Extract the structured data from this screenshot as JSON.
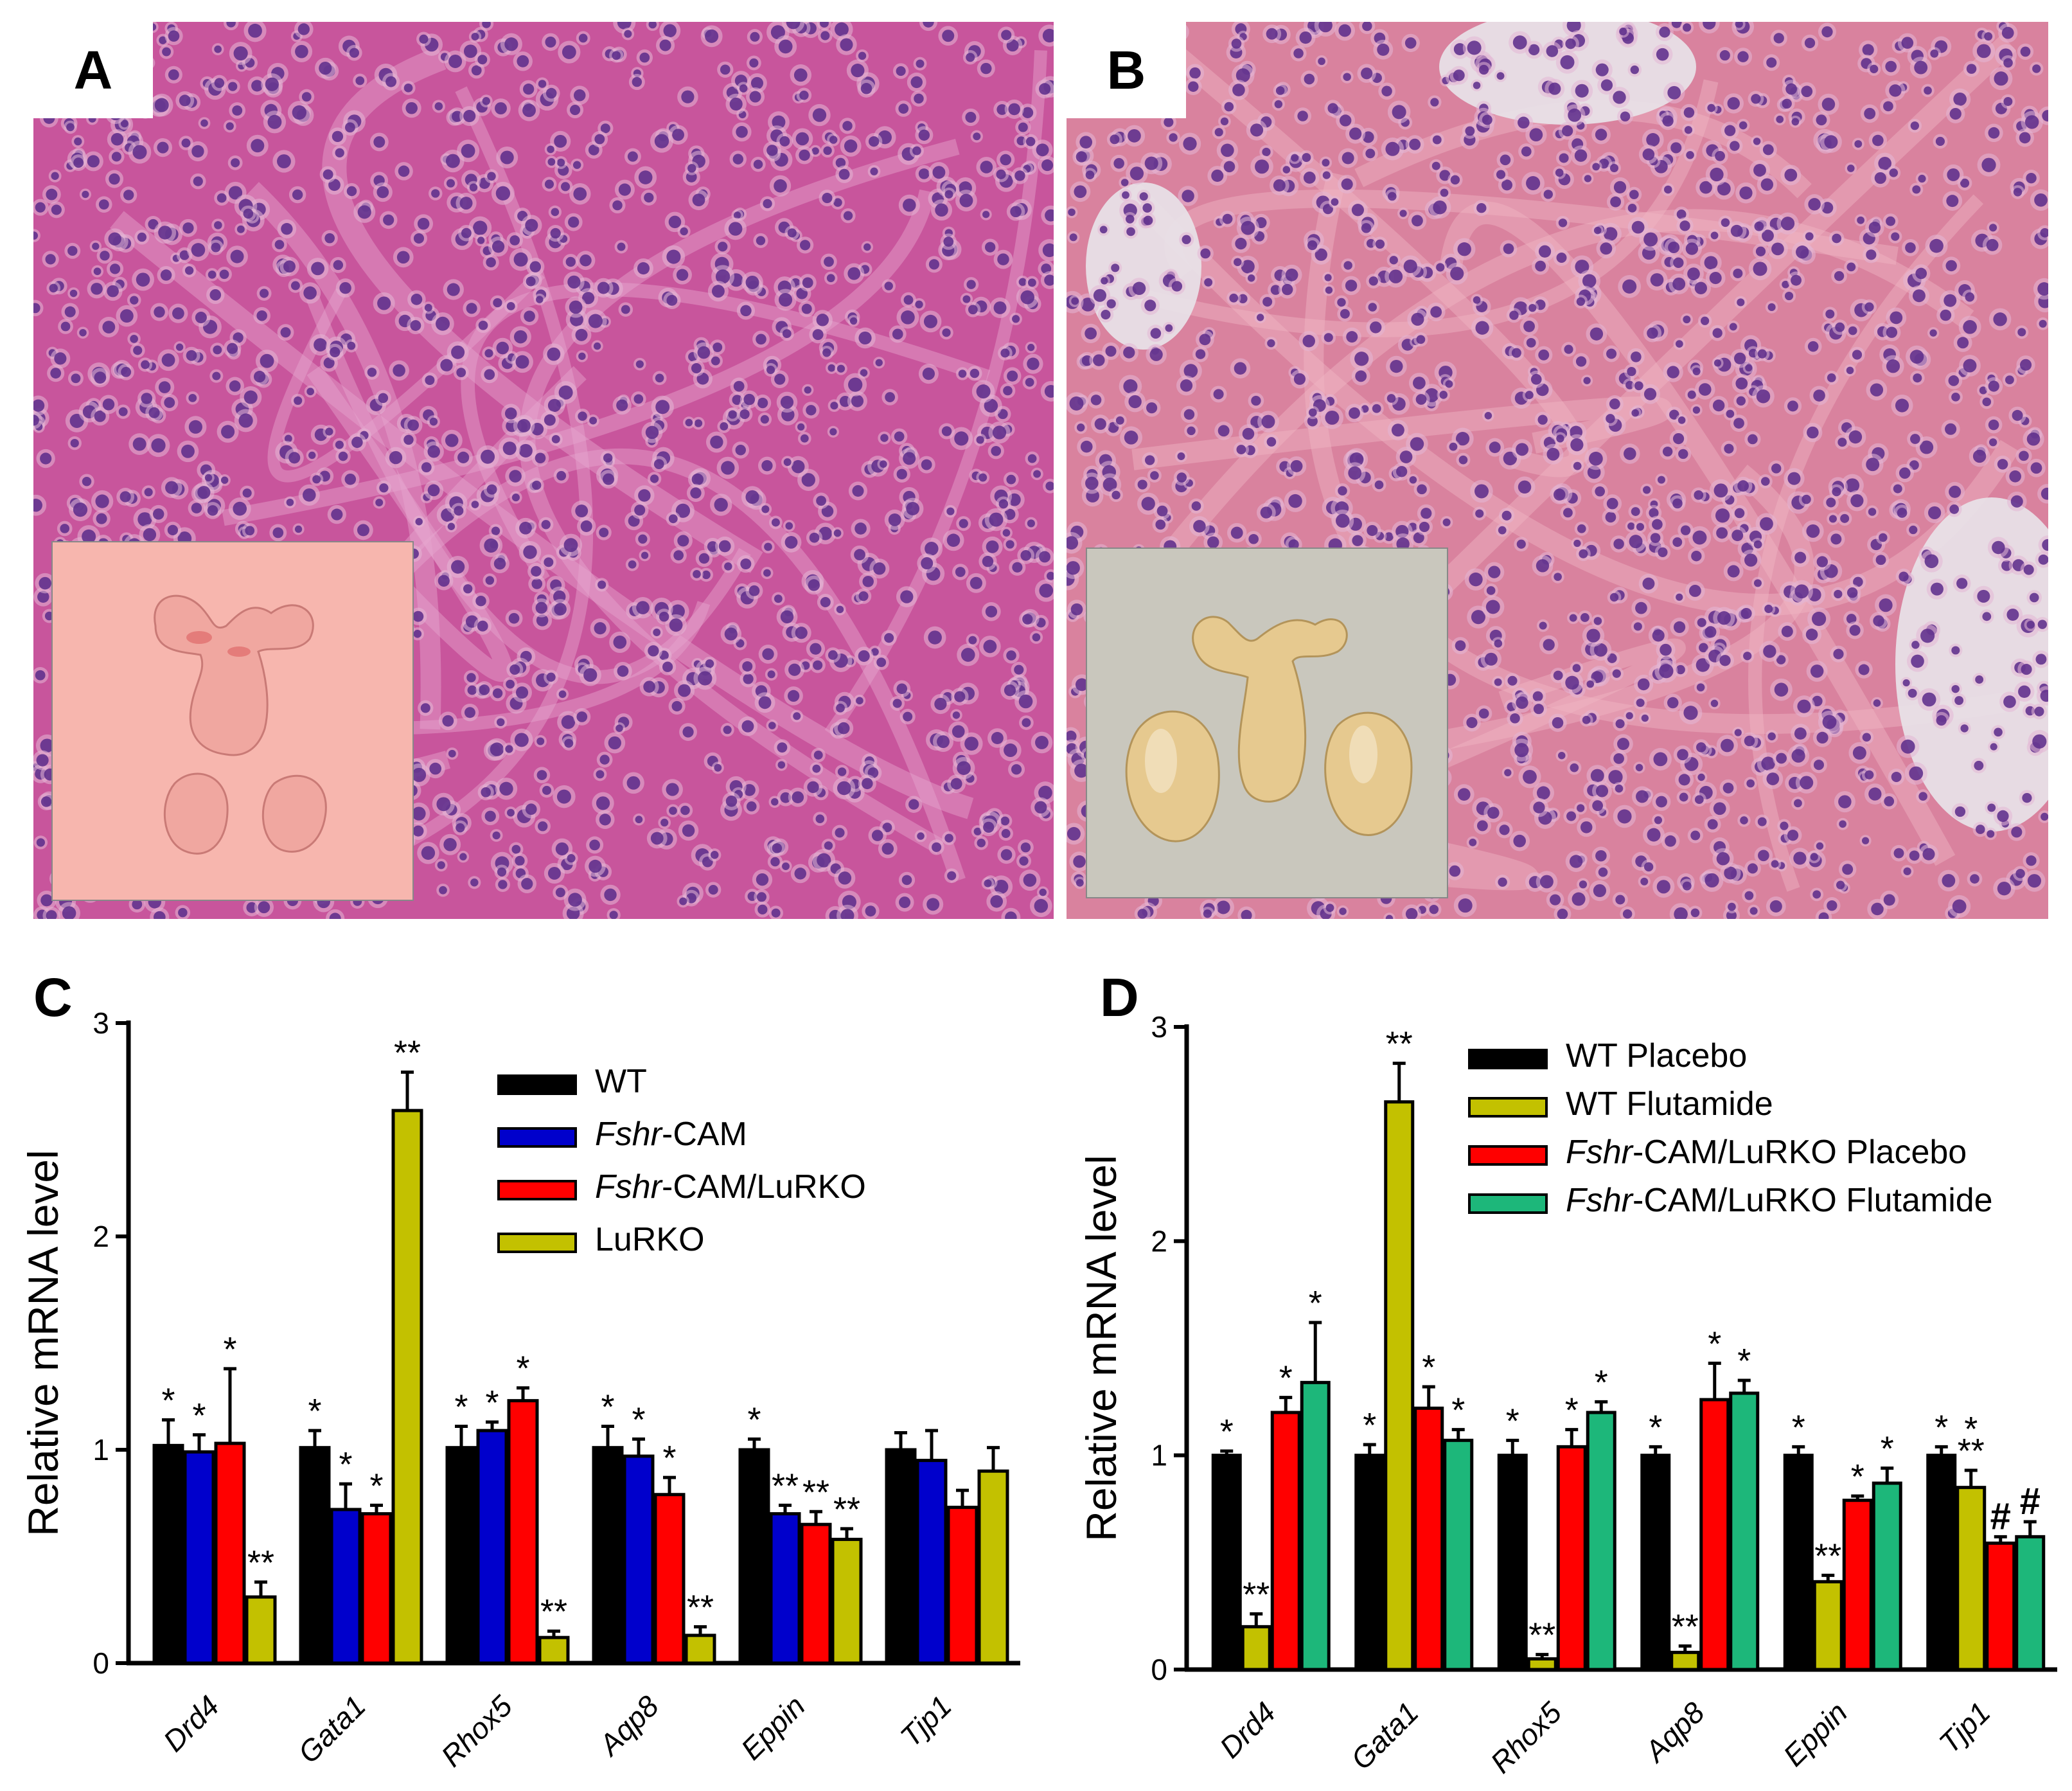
{
  "panels": {
    "a": {
      "label": "A"
    },
    "b": {
      "label": "B"
    },
    "c": {
      "label": "C"
    },
    "d": {
      "label": "D"
    }
  },
  "colors": {
    "he_stain_a": "#c8559c",
    "he_stain_b": "#d9829e",
    "nucleus": "#5a2a8a",
    "inset_bg_a": "#f7b6ae",
    "inset_bg_b": "#c9c7bd",
    "organ_a": "#f0a7a0",
    "organ_b": "#e6c98f"
  },
  "chart_data": [
    {
      "id": "C",
      "type": "bar",
      "ylabel": "Relative mRNA level",
      "ylim": [
        0,
        3
      ],
      "yticks": [
        "0",
        "1",
        "2",
        "3"
      ],
      "categories": [
        "Drd4",
        "Gata1",
        "Rhox5",
        "Aqp8",
        "Eppin",
        "Tjp1"
      ],
      "legend_position": "top-right",
      "series": [
        {
          "name": "WT",
          "name_italic": "",
          "name_rest": "WT",
          "color": "#000000",
          "values": [
            1.02,
            1.01,
            1.01,
            1.01,
            1.0,
            1.0
          ],
          "errors": [
            0.12,
            0.08,
            0.1,
            0.1,
            0.05,
            0.08
          ],
          "marks": [
            "*",
            "*",
            "*",
            "*",
            "*",
            ""
          ]
        },
        {
          "name": "Fshr-CAM",
          "name_italic": "Fshr",
          "name_rest": "-CAM",
          "color": "#0000cc",
          "values": [
            0.99,
            0.72,
            1.09,
            0.97,
            0.7,
            0.95
          ],
          "errors": [
            0.08,
            0.12,
            0.04,
            0.08,
            0.04,
            0.14
          ],
          "marks": [
            "*",
            "*",
            "*",
            "*",
            "**",
            ""
          ]
        },
        {
          "name": "Fshr-CAM/LuRKO",
          "name_italic": "Fshr",
          "name_rest": "-CAM/LuRKO",
          "color": "#ff0000",
          "values": [
            1.03,
            0.7,
            1.23,
            0.79,
            0.65,
            0.73
          ],
          "errors": [
            0.35,
            0.04,
            0.06,
            0.08,
            0.06,
            0.08
          ],
          "marks": [
            "*",
            "*",
            "*",
            "*",
            "**",
            ""
          ]
        },
        {
          "name": "LuRKO",
          "name_italic": "",
          "name_rest": "LuRKO",
          "color": "#c3c100",
          "values": [
            0.31,
            2.59,
            0.12,
            0.13,
            0.58,
            0.9
          ],
          "errors": [
            0.07,
            0.18,
            0.03,
            0.04,
            0.05,
            0.11
          ],
          "marks": [
            "**",
            "**",
            "**",
            "**",
            "**",
            ""
          ]
        }
      ]
    },
    {
      "id": "D",
      "type": "bar",
      "ylabel": "Relative mRNA level",
      "ylim": [
        0,
        3
      ],
      "yticks": [
        "0",
        "1",
        "2",
        "3"
      ],
      "categories": [
        "Drd4",
        "Gata1",
        "Rhox5",
        "Aqp8",
        "Eppin",
        "Tjp1"
      ],
      "legend_position": "top-right",
      "series": [
        {
          "name": "WT Placebo",
          "name_italic": "",
          "name_rest": "WT Placebo",
          "color": "#000000",
          "values": [
            1.0,
            1.0,
            1.0,
            1.0,
            1.0,
            1.0
          ],
          "errors": [
            0.02,
            0.05,
            0.07,
            0.04,
            0.04,
            0.04
          ],
          "marks": [
            "*",
            "*",
            "*",
            "*",
            "*",
            "*"
          ]
        },
        {
          "name": "WT Flutamide",
          "name_italic": "",
          "name_rest": "WT Flutamide",
          "color": "#c3c100",
          "values": [
            0.2,
            2.65,
            0.05,
            0.08,
            0.41,
            0.85
          ],
          "errors": [
            0.06,
            0.18,
            0.02,
            0.03,
            0.03,
            0.08
          ],
          "marks": [
            "**",
            "**",
            "**",
            "**",
            "**",
            "*\n**"
          ]
        },
        {
          "name": "Fshr-CAM/LuRKO Placebo",
          "name_italic": "Fshr",
          "name_rest": "-CAM/LuRKO Placebo",
          "color": "#ff0000",
          "values": [
            1.2,
            1.22,
            1.04,
            1.26,
            0.79,
            0.59
          ],
          "errors": [
            0.07,
            0.1,
            0.08,
            0.17,
            0.02,
            0.03
          ],
          "marks": [
            "*",
            "*",
            "*",
            "*",
            "*",
            "#"
          ]
        },
        {
          "name": "Fshr-CAM/LuRKO Flutamide",
          "name_italic": "Fshr",
          "name_rest": "-CAM/LuRKO Flutamide",
          "color": "#1db77a",
          "values": [
            1.34,
            1.07,
            1.2,
            1.29,
            0.87,
            0.62
          ],
          "errors": [
            0.28,
            0.05,
            0.05,
            0.06,
            0.07,
            0.07
          ],
          "marks": [
            "*",
            "*",
            "*",
            "*",
            "*",
            "#"
          ]
        }
      ]
    }
  ]
}
